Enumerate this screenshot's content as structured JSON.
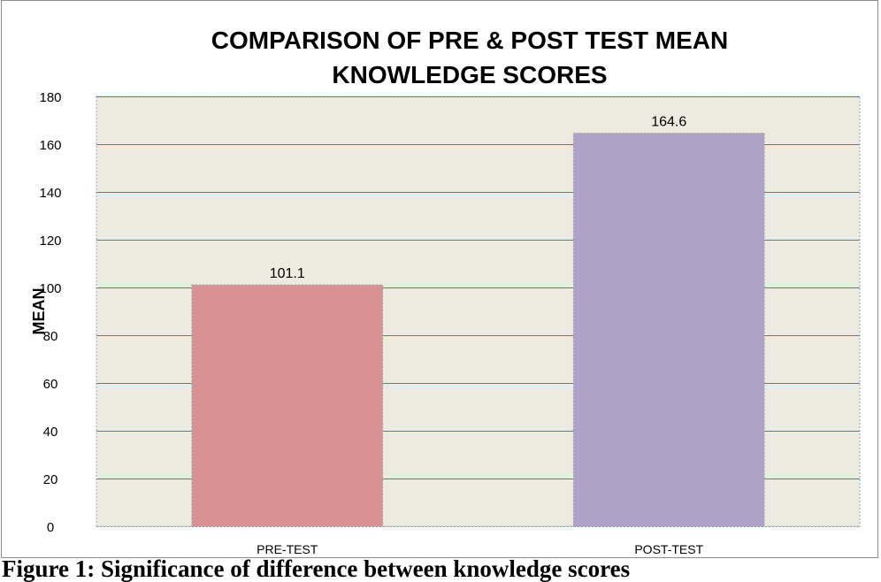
{
  "chart_data": {
    "type": "bar",
    "title_lines": [
      "COMPARISON OF PRE & POST TEST MEAN",
      "KNOWLEDGE SCORES"
    ],
    "xlabel": "",
    "ylabel": "MEAN",
    "categories": [
      "PRE-TEST",
      "POST-TEST"
    ],
    "values": [
      101.1,
      164.6
    ],
    "data_labels": [
      "101.1",
      "164.6"
    ],
    "bar_colors": [
      "#d99294",
      "#b0a1c9"
    ],
    "plot_background": "#ecebe0",
    "gridline_color": "#4a7ebb",
    "ylim": [
      0,
      180
    ],
    "yticks": [
      0,
      20,
      40,
      60,
      80,
      100,
      120,
      140,
      160,
      180
    ],
    "grid": true,
    "legend": "none"
  },
  "caption": "Figure 1: Significance of difference between knowledge scores"
}
